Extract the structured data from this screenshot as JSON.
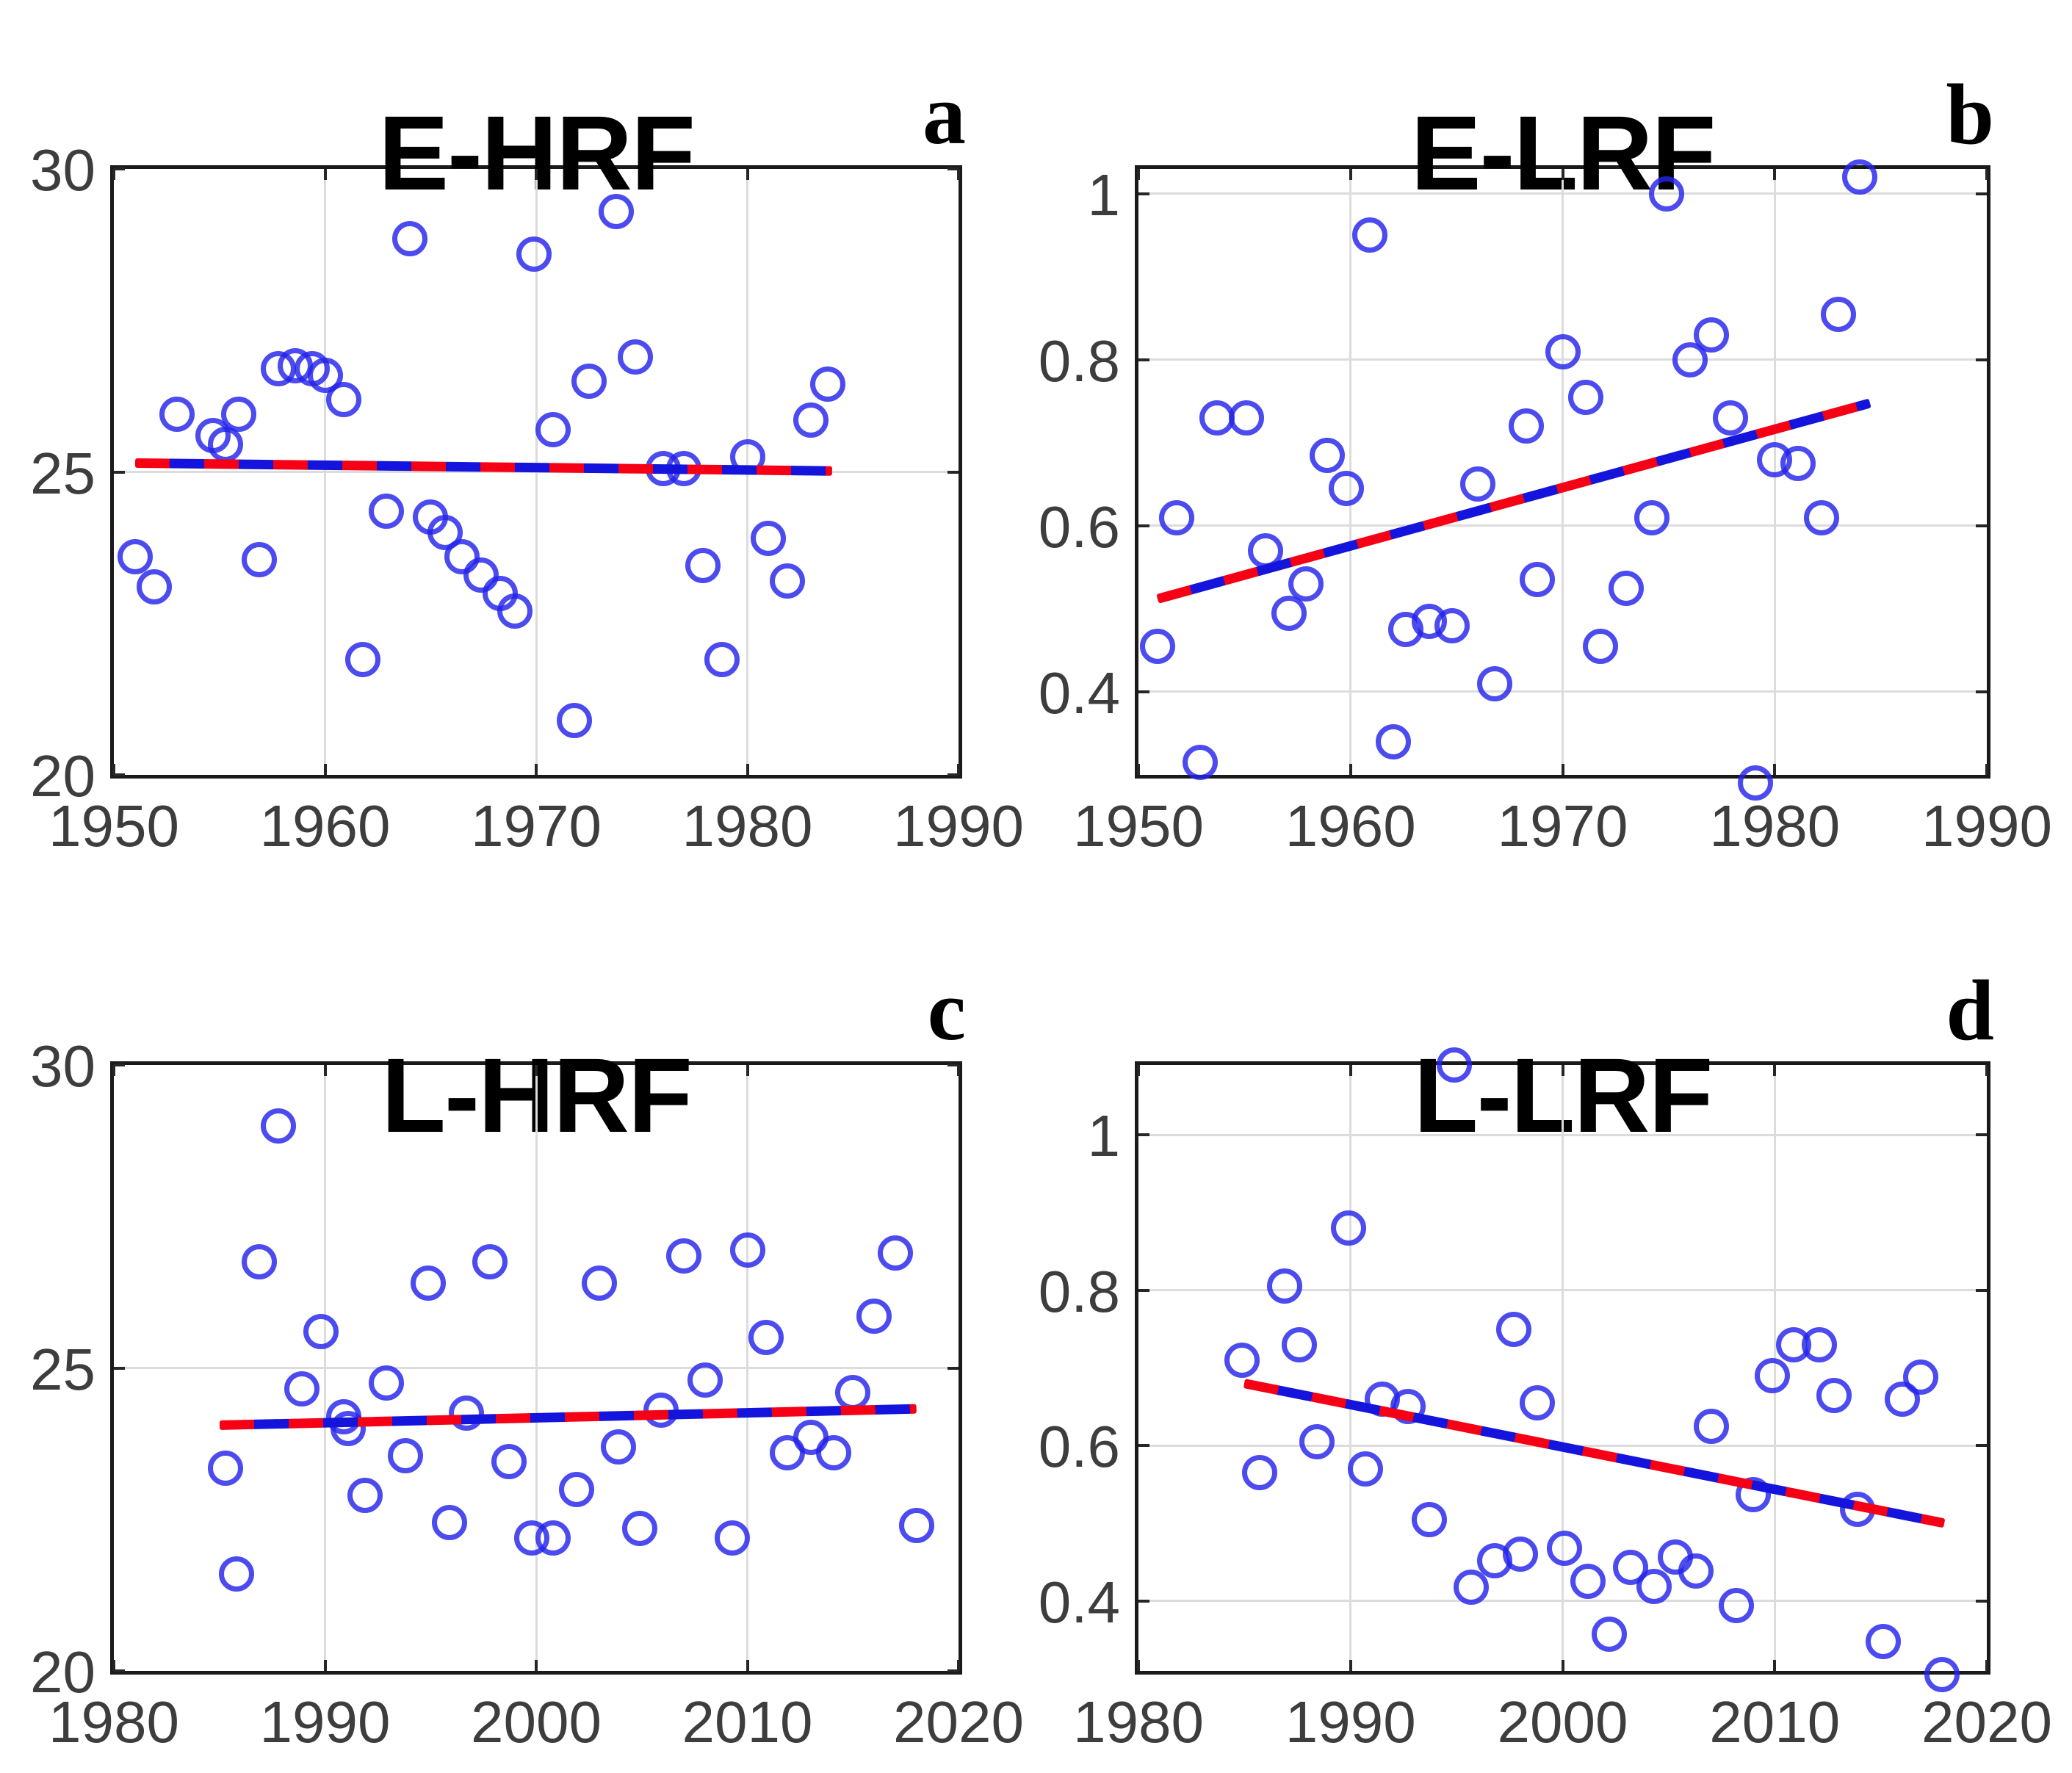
{
  "figure": {
    "background": "#ffffff",
    "marker_color": "#2323eb",
    "trend_red": "#f50014",
    "trend_blue": "#1414dc",
    "grid_color": "#dcdcdc",
    "axis_color": "#1a1a1a",
    "tick_color": "#262626",
    "tick_label_color": "#3d3d3d"
  },
  "chart_data": [
    {
      "id": "a",
      "type": "scatter",
      "title": "E-HRF",
      "panel_label": "a",
      "xlim": [
        1950,
        1990
      ],
      "ylim": [
        20,
        30
      ],
      "grid": true,
      "xticks": [
        {
          "v": 1950,
          "label": "1950"
        },
        {
          "v": 1960,
          "label": "1960"
        },
        {
          "v": 1970,
          "label": "1970"
        },
        {
          "v": 1980,
          "label": "1980"
        },
        {
          "v": 1990,
          "label": "1990"
        }
      ],
      "yticks": [
        {
          "v": 30,
          "label": "30"
        },
        {
          "v": 25,
          "label": "25"
        },
        {
          "v": 20,
          "label": "20"
        }
      ],
      "xgrid": [
        1960,
        1970,
        1980
      ],
      "ygrid": [
        25
      ],
      "trend": {
        "x1": 1951.0,
        "y1": 25.15,
        "x2": 1984.0,
        "y2": 25.02
      },
      "points": [
        [
          1951.0,
          23.6
        ],
        [
          1951.9,
          23.1
        ],
        [
          1953.0,
          25.95
        ],
        [
          1954.7,
          25.6
        ],
        [
          1955.3,
          25.45
        ],
        [
          1955.9,
          25.95
        ],
        [
          1956.9,
          23.55
        ],
        [
          1957.8,
          26.7
        ],
        [
          1958.6,
          26.75
        ],
        [
          1959.4,
          26.7
        ],
        [
          1960.0,
          26.6
        ],
        [
          1960.9,
          26.2
        ],
        [
          1961.8,
          21.9
        ],
        [
          1962.9,
          24.35
        ],
        [
          1964.0,
          28.85
        ],
        [
          1965.0,
          24.25
        ],
        [
          1965.7,
          24.0
        ],
        [
          1966.5,
          23.6
        ],
        [
          1967.4,
          23.3
        ],
        [
          1968.3,
          23.0
        ],
        [
          1969.0,
          22.7
        ],
        [
          1969.9,
          28.6
        ],
        [
          1970.8,
          25.7
        ],
        [
          1971.8,
          20.9
        ],
        [
          1972.5,
          26.5
        ],
        [
          1973.8,
          29.3
        ],
        [
          1974.7,
          26.9
        ],
        [
          1976.0,
          25.05
        ],
        [
          1977.0,
          25.05
        ],
        [
          1977.9,
          23.45
        ],
        [
          1978.8,
          21.9
        ],
        [
          1980.0,
          25.25
        ],
        [
          1981.0,
          23.9
        ],
        [
          1981.9,
          23.2
        ],
        [
          1983.0,
          25.85
        ],
        [
          1983.8,
          26.45
        ]
      ]
    },
    {
      "id": "b",
      "type": "scatter",
      "title": "E-LRF",
      "panel_label": "b",
      "xlim": [
        1950,
        1990
      ],
      "ylim": [
        0.3,
        1.03
      ],
      "grid": true,
      "xticks": [
        {
          "v": 1950,
          "label": "1950"
        },
        {
          "v": 1960,
          "label": "1960"
        },
        {
          "v": 1970,
          "label": "1970"
        },
        {
          "v": 1980,
          "label": "1980"
        },
        {
          "v": 1990,
          "label": "1990"
        }
      ],
      "yticks": [
        {
          "v": 1,
          "label": "1"
        },
        {
          "v": 0.8,
          "label": "0.8"
        },
        {
          "v": 0.6,
          "label": "0.6"
        },
        {
          "v": 0.4,
          "label": "0.4"
        }
      ],
      "xgrid": [
        1960,
        1970,
        1980
      ],
      "ygrid": [
        1,
        0.8,
        0.6,
        0.4
      ],
      "trend": {
        "x1": 1950.9,
        "y1": 0.512,
        "x2": 1984.5,
        "y2": 0.748
      },
      "points": [
        [
          1950.9,
          0.455
        ],
        [
          1951.8,
          0.61
        ],
        [
          1952.9,
          0.315
        ],
        [
          1953.7,
          0.73
        ],
        [
          1955.1,
          0.73
        ],
        [
          1956.0,
          0.57
        ],
        [
          1957.1,
          0.495
        ],
        [
          1957.9,
          0.53
        ],
        [
          1958.9,
          0.685
        ],
        [
          1959.8,
          0.645
        ],
        [
          1960.9,
          0.95
        ],
        [
          1962.0,
          0.34
        ],
        [
          1962.6,
          0.475
        ],
        [
          1963.7,
          0.485
        ],
        [
          1964.8,
          0.48
        ],
        [
          1966.0,
          0.65
        ],
        [
          1966.8,
          0.41
        ],
        [
          1968.3,
          0.72
        ],
        [
          1968.8,
          0.535
        ],
        [
          1970.0,
          0.81
        ],
        [
          1971.1,
          0.755
        ],
        [
          1971.8,
          0.455
        ],
        [
          1973.0,
          0.525
        ],
        [
          1974.2,
          0.61
        ],
        [
          1974.9,
          1.0
        ],
        [
          1976.0,
          0.8
        ],
        [
          1977.0,
          0.83
        ],
        [
          1977.9,
          0.73
        ],
        [
          1979.1,
          0.29
        ],
        [
          1980.0,
          0.68
        ],
        [
          1981.1,
          0.675
        ],
        [
          1982.2,
          0.61
        ],
        [
          1983.0,
          0.855
        ],
        [
          1984.0,
          1.02
        ]
      ]
    },
    {
      "id": "c",
      "type": "scatter",
      "title": "L-HRF",
      "panel_label": "c",
      "xlim": [
        1980,
        2020
      ],
      "ylim": [
        20,
        30
      ],
      "grid": true,
      "xticks": [
        {
          "v": 1980,
          "label": "1980"
        },
        {
          "v": 1990,
          "label": "1990"
        },
        {
          "v": 2000,
          "label": "2000"
        },
        {
          "v": 2010,
          "label": "2010"
        },
        {
          "v": 2020,
          "label": "2020"
        }
      ],
      "yticks": [
        {
          "v": 30,
          "label": "30"
        },
        {
          "v": 25,
          "label": "25"
        },
        {
          "v": 20,
          "label": "20"
        }
      ],
      "xgrid": [
        1990,
        2000,
        2010
      ],
      "ygrid": [
        25
      ],
      "trend": {
        "x1": 1985.0,
        "y1": 24.05,
        "x2": 2018.0,
        "y2": 24.32
      },
      "points": [
        [
          1985.3,
          23.35
        ],
        [
          1985.8,
          21.6
        ],
        [
          1986.9,
          26.75
        ],
        [
          1987.8,
          29.0
        ],
        [
          1988.9,
          24.65
        ],
        [
          1989.8,
          25.6
        ],
        [
          1990.9,
          24.2
        ],
        [
          1991.1,
          24.0
        ],
        [
          1991.9,
          22.9
        ],
        [
          1992.9,
          24.75
        ],
        [
          1993.8,
          23.55
        ],
        [
          1994.9,
          26.4
        ],
        [
          1995.9,
          22.45
        ],
        [
          1996.7,
          24.25
        ],
        [
          1997.8,
          26.75
        ],
        [
          1998.7,
          23.45
        ],
        [
          1999.8,
          22.2
        ],
        [
          2000.8,
          22.2
        ],
        [
          2001.9,
          23.0
        ],
        [
          2003.0,
          26.4
        ],
        [
          2003.9,
          23.7
        ],
        [
          2004.9,
          22.35
        ],
        [
          2005.9,
          24.3
        ],
        [
          2007.0,
          26.85
        ],
        [
          2008.0,
          24.8
        ],
        [
          2009.3,
          22.2
        ],
        [
          2010.0,
          26.95
        ],
        [
          2010.9,
          25.5
        ],
        [
          2011.9,
          23.6
        ],
        [
          2013.0,
          23.85
        ],
        [
          2014.1,
          23.6
        ],
        [
          2015.0,
          24.6
        ],
        [
          2016.0,
          25.85
        ],
        [
          2017.0,
          26.9
        ],
        [
          2018.0,
          22.4
        ]
      ]
    },
    {
      "id": "d",
      "type": "scatter",
      "title": "L-LRF",
      "panel_label": "d",
      "xlim": [
        1980,
        2020
      ],
      "ylim": [
        0.31,
        1.09
      ],
      "grid": true,
      "xticks": [
        {
          "v": 1980,
          "label": "1980"
        },
        {
          "v": 1990,
          "label": "1990"
        },
        {
          "v": 2000,
          "label": "2000"
        },
        {
          "v": 2010,
          "label": "2010"
        },
        {
          "v": 2020,
          "label": "2020"
        }
      ],
      "yticks": [
        {
          "v": 1,
          "label": "1"
        },
        {
          "v": 0.8,
          "label": "0.8"
        },
        {
          "v": 0.6,
          "label": "0.6"
        },
        {
          "v": 0.4,
          "label": "0.4"
        }
      ],
      "xgrid": [
        1990,
        2000,
        2010
      ],
      "ygrid": [
        1,
        0.8,
        0.6,
        0.4
      ],
      "trend": {
        "x1": 1985.0,
        "y1": 0.68,
        "x2": 2018.0,
        "y2": 0.5
      },
      "points": [
        [
          1984.9,
          0.71
        ],
        [
          1985.7,
          0.565
        ],
        [
          1986.9,
          0.805
        ],
        [
          1987.6,
          0.73
        ],
        [
          1988.4,
          0.605
        ],
        [
          1989.9,
          0.88
        ],
        [
          1990.7,
          0.57
        ],
        [
          1991.5,
          0.66
        ],
        [
          1992.7,
          0.65
        ],
        [
          1993.7,
          0.505
        ],
        [
          1994.9,
          1.09
        ],
        [
          1995.7,
          0.418
        ],
        [
          1996.8,
          0.452
        ],
        [
          1997.7,
          0.75
        ],
        [
          1998.0,
          0.46
        ],
        [
          1998.8,
          0.655
        ],
        [
          2000.1,
          0.468
        ],
        [
          2001.2,
          0.425
        ],
        [
          2002.2,
          0.357
        ],
        [
          2003.2,
          0.443
        ],
        [
          2004.3,
          0.419
        ],
        [
          2005.3,
          0.457
        ],
        [
          2006.3,
          0.439
        ],
        [
          2007.0,
          0.625
        ],
        [
          2008.2,
          0.394
        ],
        [
          2009.0,
          0.537
        ],
        [
          2009.9,
          0.69
        ],
        [
          2010.9,
          0.73
        ],
        [
          2012.1,
          0.73
        ],
        [
          2012.8,
          0.665
        ],
        [
          2013.9,
          0.518
        ],
        [
          2015.1,
          0.348
        ],
        [
          2016.0,
          0.66
        ],
        [
          2016.9,
          0.688
        ],
        [
          2017.9,
          0.305
        ]
      ]
    }
  ]
}
